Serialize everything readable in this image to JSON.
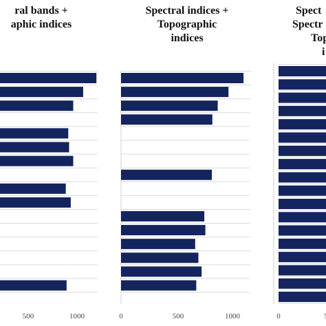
{
  "colors": {
    "bar": "#13245e",
    "grid": "#d9d9d9",
    "panel_border": "#cfcfcf"
  },
  "chart_data": [
    {
      "type": "bar",
      "orientation": "horizontal",
      "title_lines": [
        "ral bands +",
        "aphic indices"
      ],
      "xlim": [
        0,
        1200
      ],
      "xticks": [
        "500",
        "1000"
      ],
      "grid": true,
      "values": [
        1230,
        1070,
        950,
        null,
        890,
        900,
        950,
        null,
        860,
        920,
        null,
        null,
        null,
        null,
        null,
        870
      ]
    },
    {
      "type": "bar",
      "orientation": "horizontal",
      "title_lines": [
        "Spectral  indices +",
        "Topographic",
        "indices"
      ],
      "xlim": [
        0,
        1100
      ],
      "xticks": [
        "0",
        "500",
        "1000"
      ],
      "grid": true,
      "values": [
        1140,
        1000,
        900,
        850,
        null,
        null,
        null,
        845,
        null,
        null,
        775,
        785,
        690,
        720,
        750,
        700
      ]
    },
    {
      "type": "bar",
      "orientation": "horizontal",
      "title_lines": [
        "Spect",
        "Spectr",
        "Top",
        "i"
      ],
      "xlim": [
        0,
        1100
      ],
      "xticks": [
        "0",
        "5"
      ],
      "grid": true,
      "values": [
        1000,
        1000,
        1000,
        1000,
        1000,
        1000,
        1000,
        1000,
        1000,
        1000,
        1000,
        1000,
        1000,
        1000,
        1000,
        1000,
        1000,
        1000,
        1000,
        1000
      ]
    }
  ]
}
